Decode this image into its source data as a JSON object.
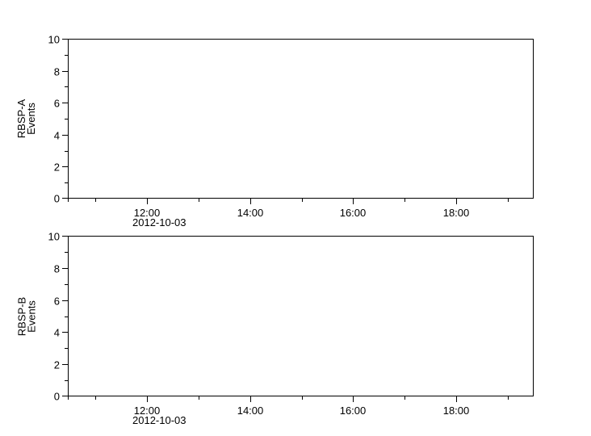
{
  "canvas": {
    "background": "#ffffff",
    "foreground": "#000000"
  },
  "chart_data": [
    {
      "type": "line",
      "panel": "top",
      "title": "",
      "ylabel": "RBSP-A Events",
      "ylabel_lines": [
        "RBSP-A",
        "Events"
      ],
      "ylim": [
        0,
        10
      ],
      "y_major_ticks": [
        0,
        2,
        4,
        6,
        8,
        10
      ],
      "y_minor_ticks": [
        1,
        3,
        5,
        7,
        9
      ],
      "x_axis_date": "2012-10-03",
      "xlim_minutes": [
        628,
        1170
      ],
      "x_major_ticks": [
        {
          "minutes": 720,
          "label": "12:00"
        },
        {
          "minutes": 840,
          "label": "14:00"
        },
        {
          "minutes": 960,
          "label": "16:00"
        },
        {
          "minutes": 1080,
          "label": "18:00"
        }
      ],
      "x_minor_ticks_minutes": [
        660,
        780,
        900,
        1020,
        1140
      ],
      "x_edge_ticks_minutes": [
        628
      ],
      "grid": false,
      "legend": null,
      "series": []
    },
    {
      "type": "line",
      "panel": "bottom",
      "title": "",
      "ylabel": "RBSP-B Events",
      "ylabel_lines": [
        "RBSP-B",
        "Events"
      ],
      "ylim": [
        0,
        10
      ],
      "y_major_ticks": [
        0,
        2,
        4,
        6,
        8,
        10
      ],
      "y_minor_ticks": [
        1,
        3,
        5,
        7,
        9
      ],
      "x_axis_date": "2012-10-03",
      "xlim_minutes": [
        628,
        1170
      ],
      "x_major_ticks": [
        {
          "minutes": 720,
          "label": "12:00"
        },
        {
          "minutes": 840,
          "label": "14:00"
        },
        {
          "minutes": 960,
          "label": "16:00"
        },
        {
          "minutes": 1080,
          "label": "18:00"
        }
      ],
      "x_minor_ticks_minutes": [
        660,
        780,
        900,
        1020,
        1140
      ],
      "x_edge_ticks_minutes": [
        628
      ],
      "grid": false,
      "legend": null,
      "series": []
    }
  ]
}
